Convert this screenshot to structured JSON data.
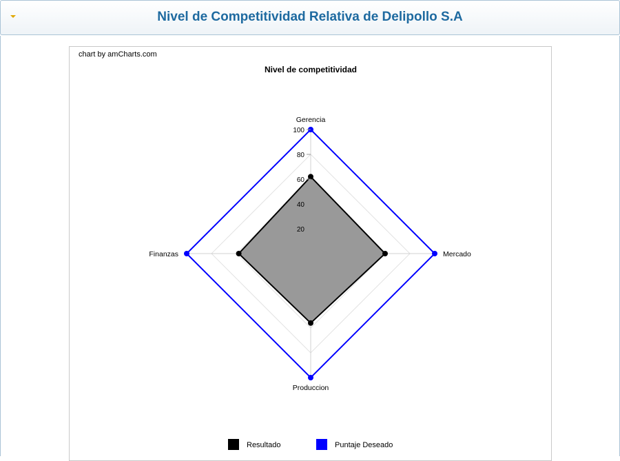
{
  "page": {
    "title": "Nivel de Competitividad Relativa de Delipollo S.A"
  },
  "chart": {
    "credit": "chart by amCharts.com"
  },
  "chart_data": {
    "type": "radar",
    "title": "Nivel de competitividad",
    "categories": [
      "Gerencia",
      "Mercado",
      "Produccion",
      "Finanzas"
    ],
    "value_axis": {
      "min": 0,
      "max": 100,
      "ticks": [
        20,
        40,
        60,
        80,
        100
      ],
      "grid": true
    },
    "series": [
      {
        "name": "Resultado",
        "values": [
          62,
          60,
          56,
          58
        ],
        "color": "#000000",
        "fill": "#999999"
      },
      {
        "name": "Puntaje Deseado",
        "values": [
          100,
          100,
          100,
          100
        ],
        "color": "#0000ff"
      }
    ],
    "legend_position": "bottom"
  }
}
